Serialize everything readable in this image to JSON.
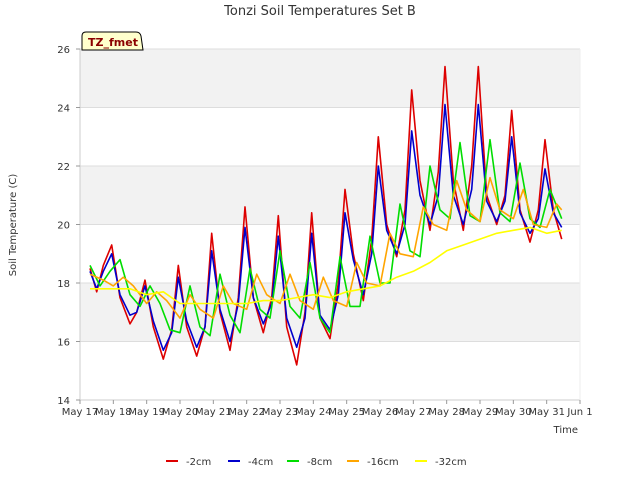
{
  "chart_data": {
    "type": "line",
    "title": "Tonzi Soil Temperatures Set B",
    "xlabel": "Time",
    "ylabel": "Soil Temperature (C)",
    "ylim": [
      14,
      26
    ],
    "xlim": [
      0,
      15
    ],
    "yticks": [
      14,
      16,
      18,
      20,
      22,
      24,
      26
    ],
    "xtick_positions": [
      0,
      1,
      2,
      3,
      4,
      5,
      6,
      7,
      8,
      9,
      10,
      11,
      12,
      13,
      14,
      15
    ],
    "xtick_labels": [
      "May 17",
      "May 18",
      "May 19",
      "May 20",
      "May 21",
      "May 22",
      "May 23",
      "May 24",
      "May 25",
      "May 26",
      "May 27",
      "May 28",
      "May 29",
      "May 30",
      "May 31",
      "Jun 1"
    ],
    "tag_label": "TZ_fmet",
    "grid": true,
    "legend_position": "bottom",
    "series": [
      {
        "name": "-2cm",
        "color": "#dd0000",
        "x": [
          0.3,
          0.5,
          0.7,
          0.95,
          1.2,
          1.5,
          1.7,
          1.95,
          2.2,
          2.5,
          2.75,
          2.95,
          3.2,
          3.5,
          3.75,
          3.95,
          4.2,
          4.5,
          4.75,
          4.95,
          5.2,
          5.5,
          5.75,
          5.95,
          6.2,
          6.5,
          6.75,
          6.95,
          7.2,
          7.5,
          7.75,
          7.95,
          8.2,
          8.5,
          8.75,
          8.95,
          9.2,
          9.5,
          9.75,
          9.95,
          10.2,
          10.5,
          10.75,
          10.95,
          11.2,
          11.5,
          11.75,
          11.95,
          12.2,
          12.5,
          12.75,
          12.95,
          13.2,
          13.5,
          13.75,
          13.95,
          14.2,
          14.45
        ],
        "y": [
          18.5,
          17.7,
          18.6,
          19.3,
          17.5,
          16.6,
          17.0,
          18.1,
          16.5,
          15.4,
          16.4,
          18.6,
          16.5,
          15.5,
          16.5,
          19.7,
          17.0,
          15.7,
          17.5,
          20.6,
          17.5,
          16.3,
          17.5,
          20.3,
          16.5,
          15.2,
          17.0,
          20.4,
          16.8,
          16.1,
          18.0,
          21.2,
          19.0,
          17.4,
          19.5,
          23.0,
          20.0,
          18.9,
          20.5,
          24.6,
          21.5,
          19.8,
          21.8,
          25.4,
          21.5,
          19.8,
          22.0,
          25.4,
          21.0,
          20.0,
          21.0,
          23.9,
          20.5,
          19.4,
          20.5,
          22.9,
          20.5,
          19.5
        ]
      },
      {
        "name": "-4cm",
        "color": "#0000cc",
        "x": [
          0.3,
          0.5,
          0.7,
          0.95,
          1.2,
          1.5,
          1.7,
          1.95,
          2.2,
          2.5,
          2.75,
          2.95,
          3.2,
          3.5,
          3.75,
          3.95,
          4.2,
          4.5,
          4.75,
          4.95,
          5.2,
          5.5,
          5.75,
          5.95,
          6.2,
          6.5,
          6.75,
          6.95,
          7.2,
          7.5,
          7.75,
          7.95,
          8.2,
          8.5,
          8.75,
          8.95,
          9.2,
          9.5,
          9.75,
          9.95,
          10.2,
          10.5,
          10.75,
          10.95,
          11.2,
          11.5,
          11.75,
          11.95,
          12.2,
          12.5,
          12.75,
          12.95,
          13.2,
          13.5,
          13.75,
          13.95,
          14.2,
          14.45
        ],
        "y": [
          18.4,
          17.8,
          18.4,
          19.0,
          17.6,
          16.9,
          17.0,
          17.9,
          16.7,
          15.7,
          16.3,
          18.2,
          16.7,
          15.8,
          16.5,
          19.1,
          17.1,
          16.0,
          17.3,
          19.9,
          17.5,
          16.6,
          17.3,
          19.6,
          16.8,
          15.8,
          16.8,
          19.7,
          16.9,
          16.4,
          17.6,
          20.4,
          18.8,
          17.6,
          19.0,
          22.0,
          19.8,
          19.0,
          20.0,
          23.2,
          21.0,
          20.0,
          21.0,
          24.1,
          21.0,
          20.0,
          21.2,
          24.1,
          20.8,
          20.1,
          20.8,
          23.0,
          20.4,
          19.7,
          20.2,
          21.9,
          20.4,
          19.9
        ]
      },
      {
        "name": "-8cm",
        "color": "#00dd00",
        "x": [
          0.3,
          0.6,
          0.9,
          1.2,
          1.5,
          1.8,
          2.1,
          2.4,
          2.7,
          3.0,
          3.3,
          3.6,
          3.9,
          4.2,
          4.5,
          4.8,
          5.1,
          5.4,
          5.7,
          6.0,
          6.3,
          6.6,
          6.9,
          7.2,
          7.5,
          7.8,
          8.1,
          8.4,
          8.7,
          9.0,
          9.3,
          9.6,
          9.9,
          10.2,
          10.5,
          10.8,
          11.1,
          11.4,
          11.7,
          12.0,
          12.3,
          12.6,
          12.9,
          13.2,
          13.5,
          13.8,
          14.1,
          14.45
        ],
        "y": [
          18.6,
          17.9,
          18.4,
          18.8,
          17.6,
          17.2,
          17.9,
          17.3,
          16.4,
          16.3,
          17.9,
          16.5,
          16.2,
          18.3,
          16.9,
          16.3,
          18.5,
          17.1,
          16.8,
          19.1,
          17.2,
          16.8,
          18.7,
          16.8,
          16.3,
          18.9,
          17.2,
          17.2,
          19.6,
          18.0,
          18.0,
          20.7,
          19.1,
          18.9,
          22.0,
          20.5,
          20.2,
          22.8,
          20.3,
          20.1,
          22.9,
          20.4,
          20.1,
          22.1,
          20.2,
          19.9,
          21.2,
          20.2
        ]
      },
      {
        "name": "-16cm",
        "color": "#ffa500",
        "x": [
          0.3,
          0.7,
          1.0,
          1.3,
          1.6,
          2.0,
          2.3,
          2.6,
          3.0,
          3.3,
          3.6,
          4.0,
          4.3,
          4.6,
          5.0,
          5.3,
          5.6,
          6.0,
          6.3,
          6.6,
          7.0,
          7.3,
          7.6,
          8.0,
          8.3,
          8.6,
          9.0,
          9.3,
          9.6,
          10.0,
          10.3,
          10.6,
          11.0,
          11.3,
          11.6,
          12.0,
          12.3,
          12.6,
          13.0,
          13.3,
          13.6,
          14.0,
          14.3,
          14.45
        ],
        "y": [
          18.3,
          18.1,
          17.9,
          18.2,
          17.9,
          17.3,
          17.7,
          17.4,
          16.8,
          17.6,
          17.1,
          16.8,
          17.9,
          17.3,
          17.1,
          18.3,
          17.6,
          17.3,
          18.3,
          17.4,
          17.1,
          18.2,
          17.4,
          17.2,
          18.7,
          18.0,
          17.9,
          19.7,
          19.0,
          18.9,
          20.6,
          20.0,
          19.8,
          21.5,
          20.5,
          20.1,
          21.6,
          20.5,
          20.2,
          21.2,
          20.0,
          19.9,
          20.7,
          20.5
        ]
      },
      {
        "name": "-32cm",
        "color": "#ffff00",
        "x": [
          0.3,
          1.0,
          1.5,
          2.0,
          2.5,
          3.0,
          3.5,
          4.0,
          4.5,
          5.0,
          5.5,
          6.0,
          6.5,
          7.0,
          7.5,
          8.0,
          8.5,
          9.0,
          9.5,
          10.0,
          10.5,
          11.0,
          11.5,
          12.0,
          12.5,
          13.0,
          13.5,
          14.0,
          14.45
        ],
        "y": [
          17.8,
          17.8,
          17.8,
          17.6,
          17.7,
          17.3,
          17.3,
          17.3,
          17.3,
          17.3,
          17.4,
          17.4,
          17.5,
          17.6,
          17.5,
          17.7,
          17.8,
          17.9,
          18.2,
          18.4,
          18.7,
          19.1,
          19.3,
          19.5,
          19.7,
          19.8,
          19.9,
          19.7,
          19.8
        ]
      }
    ]
  }
}
